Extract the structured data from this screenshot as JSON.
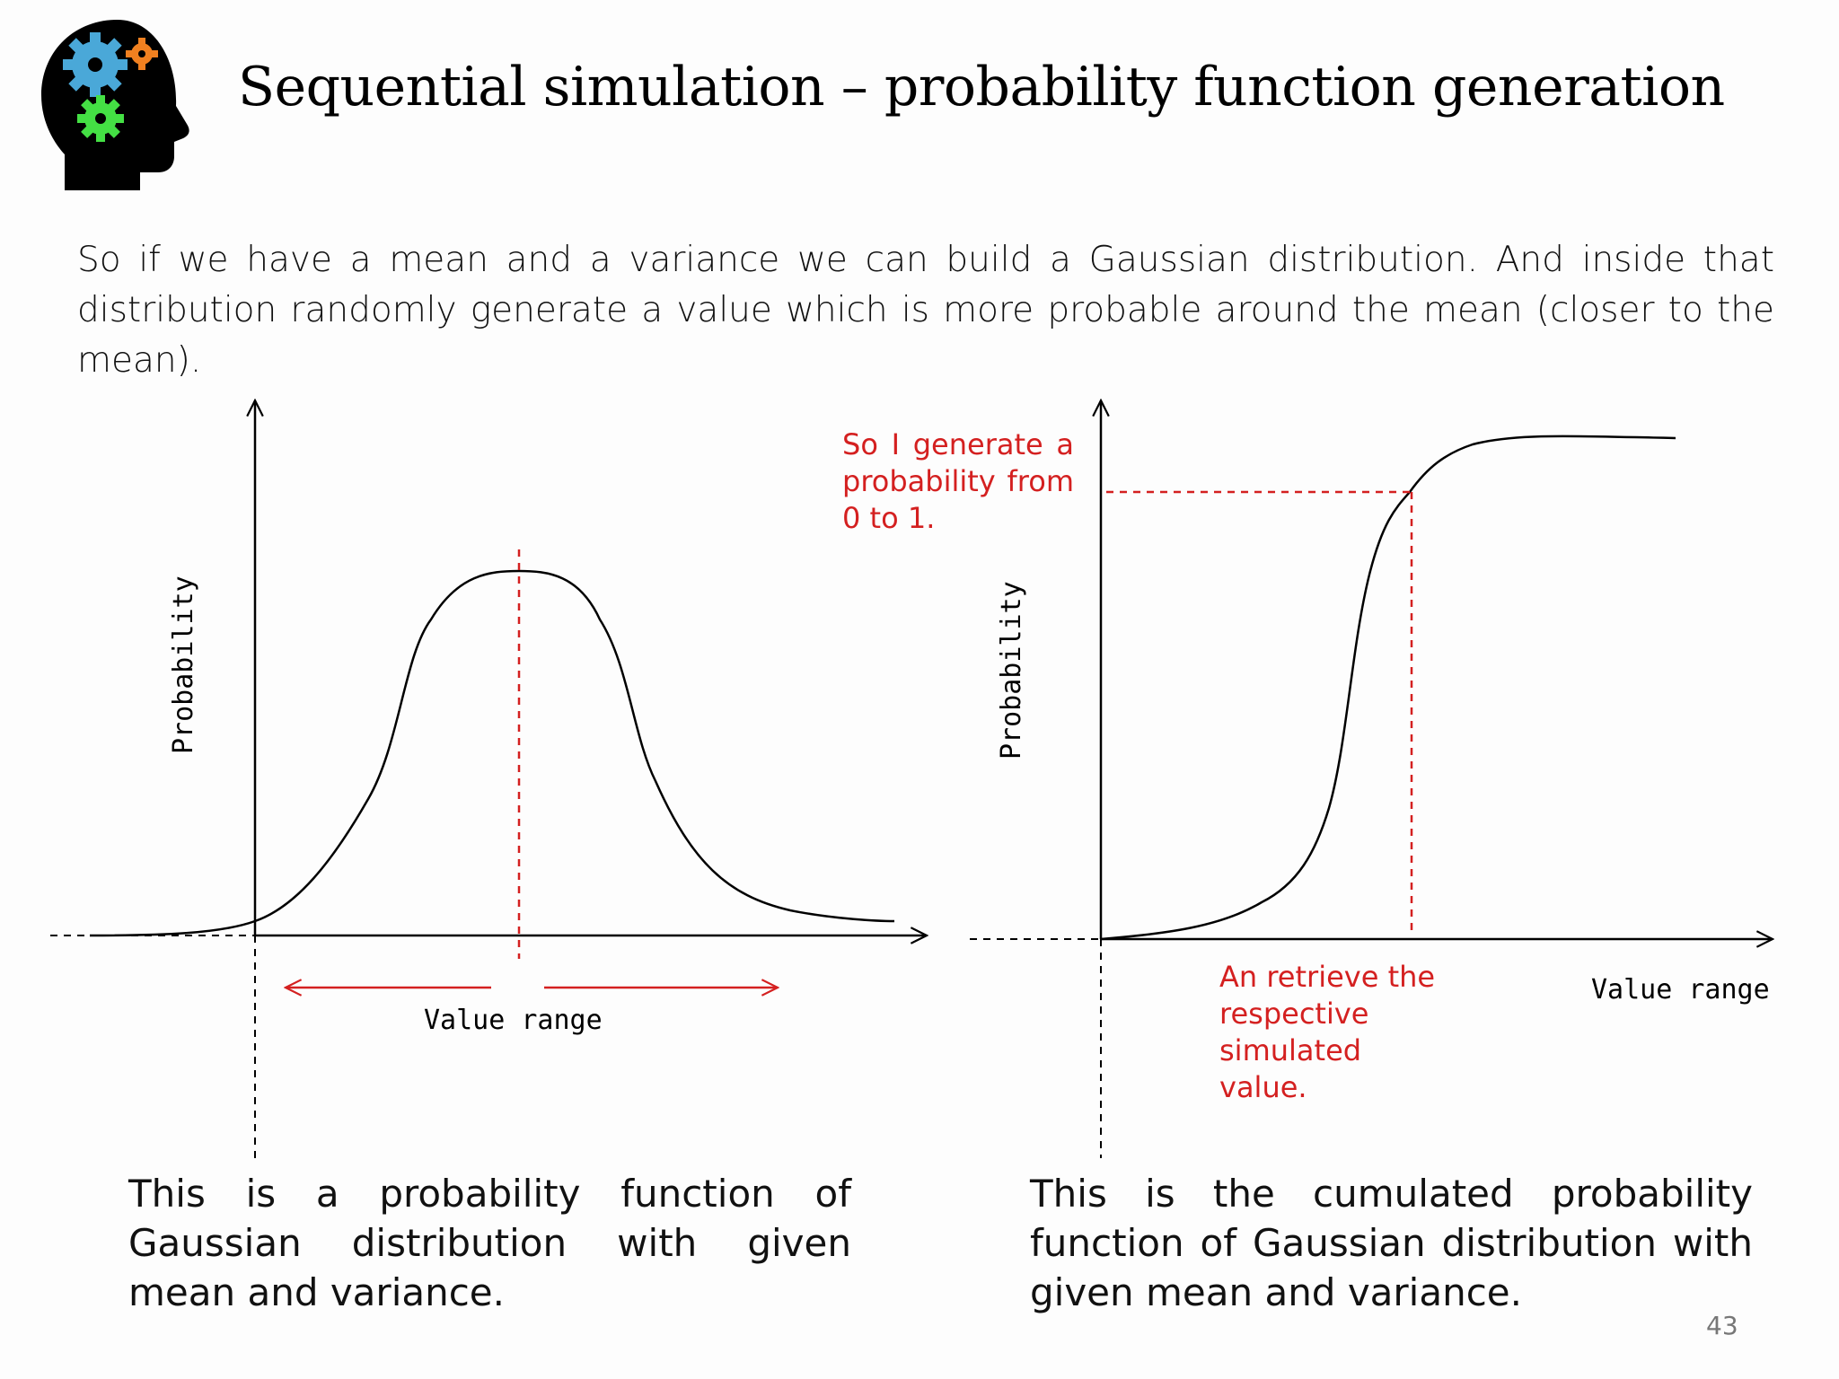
{
  "slide": {
    "title": "Sequential simulation – probability function generation",
    "intro": "So if we have a mean and a variance we can build a Gaussian distribution. And inside that distribution randomly generate a value which is more probable around the mean (closer to the mean).",
    "page_number": "43"
  },
  "logo": {
    "icon": "head-with-gears-icon",
    "colors": {
      "head": "#000000",
      "gear_blue": "#4aa8d8",
      "gear_orange": "#f08020",
      "gear_green": "#44e044"
    }
  },
  "left_chart": {
    "y_label": "Probability",
    "x_label": "Value range",
    "caption": "This is a probability function of Gaussian distribution with given mean and variance."
  },
  "right_chart": {
    "y_label": "Probability",
    "x_label": "Value range",
    "annotation_top": "So I generate a probability from 0 to 1.",
    "annotation_bottom": "An retrieve the respective simulated value.",
    "caption": "This is the cumulated probability function of Gaussian distribution with given mean and variance."
  },
  "colors": {
    "annotation": "#d42020",
    "curve": "#000000"
  }
}
